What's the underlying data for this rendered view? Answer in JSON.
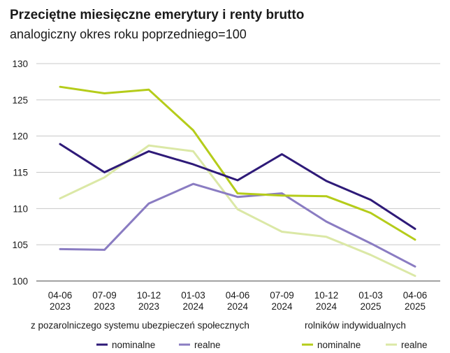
{
  "chart_data": {
    "type": "line",
    "title": "Przeciętne miesięczne emerytury i renty brutto",
    "subtitle": "analogiczny okres roku poprzedniego=100",
    "categories": [
      [
        "04-06",
        "2023"
      ],
      [
        "07-09",
        "2023"
      ],
      [
        "10-12",
        "2023"
      ],
      [
        "01-03",
        "2024"
      ],
      [
        "04-06",
        "2024"
      ],
      [
        "07-09",
        "2024"
      ],
      [
        "10-12",
        "2024"
      ],
      [
        "01-03",
        "2025"
      ],
      [
        "04-06",
        "2025"
      ]
    ],
    "ylim": [
      100,
      130
    ],
    "yticks": [
      100,
      105,
      110,
      115,
      120,
      125,
      130
    ],
    "grid": true,
    "legend_groups": [
      {
        "title": "z pozarolniczego systemu ubezpieczeń społecznych",
        "series": [
          0,
          1
        ]
      },
      {
        "title": "rolników indywidualnych",
        "series": [
          2,
          3
        ]
      }
    ],
    "series": [
      {
        "name": "nominalne",
        "color": "#2e1a78",
        "values": [
          118.9,
          115.0,
          117.9,
          116.1,
          113.9,
          117.5,
          113.8,
          111.2,
          107.2
        ]
      },
      {
        "name": "realne",
        "color": "#8a7cc2",
        "values": [
          104.4,
          104.3,
          110.7,
          113.4,
          111.6,
          112.1,
          108.2,
          105.2,
          102.0
        ]
      },
      {
        "name": "nominalne",
        "color": "#b5cc1a",
        "values": [
          126.8,
          125.9,
          126.4,
          120.8,
          112.1,
          111.8,
          111.7,
          109.4,
          105.7
        ]
      },
      {
        "name": "realne",
        "color": "#dbe8a6",
        "values": [
          111.4,
          114.3,
          118.7,
          117.9,
          109.9,
          106.8,
          106.1,
          103.6,
          100.7
        ]
      }
    ]
  }
}
